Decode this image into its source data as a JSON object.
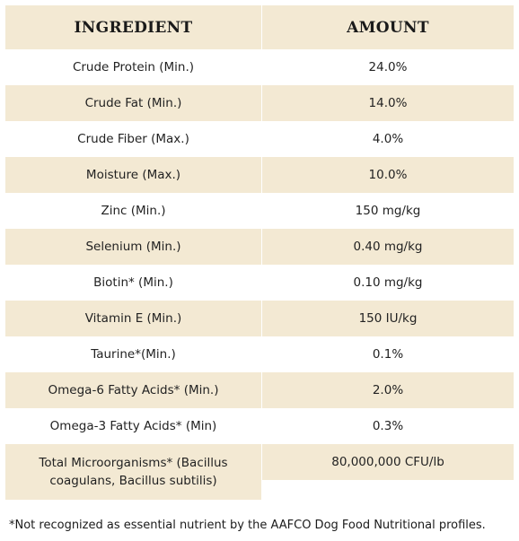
{
  "table": {
    "headers": {
      "ingredient": "INGREDIENT",
      "amount": "AMOUNT"
    },
    "rows": [
      {
        "ingredient": "Crude Protein (Min.)",
        "amount": "24.0%"
      },
      {
        "ingredient": "Crude Fat (Min.)",
        "amount": "14.0%"
      },
      {
        "ingredient": "Crude Fiber (Max.)",
        "amount": "4.0%"
      },
      {
        "ingredient": "Moisture (Max.)",
        "amount": "10.0%"
      },
      {
        "ingredient": "Zinc (Min.)",
        "amount": "150 mg/kg"
      },
      {
        "ingredient": "Selenium (Min.)",
        "amount": "0.40 mg/kg"
      },
      {
        "ingredient": "Biotin* (Min.)",
        "amount": "0.10 mg/kg"
      },
      {
        "ingredient": "Vitamin E (Min.)",
        "amount": "150 IU/kg"
      },
      {
        "ingredient": "Taurine*(Min.)",
        "amount": "0.1%"
      },
      {
        "ingredient": "Omega-6 Fatty Acids* (Min.)",
        "amount": "2.0%"
      },
      {
        "ingredient": "Omega-3 Fatty Acids* (Min)",
        "amount": "0.3%"
      },
      {
        "ingredient": "Total Microorganisms* (Bacillus coagulans, Bacillus subtilis)",
        "amount": "80,000,000 CFU/lb"
      }
    ]
  },
  "footnote": "*Not recognized as essential nutrient by the AAFCO Dog Food Nutritional profiles.",
  "colors": {
    "shade": "#f3e9d3",
    "background": "#ffffff",
    "text": "#1a1a1a"
  }
}
